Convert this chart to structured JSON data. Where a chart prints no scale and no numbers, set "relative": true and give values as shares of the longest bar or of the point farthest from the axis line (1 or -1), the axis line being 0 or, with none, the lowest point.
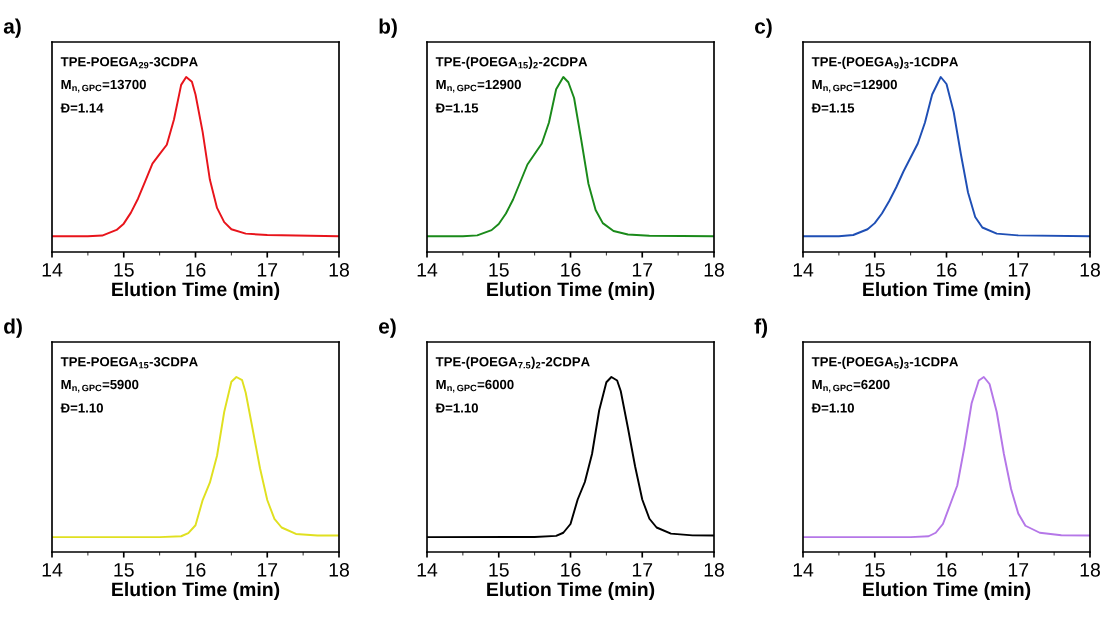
{
  "chart_data": [
    {
      "type": "line",
      "title": "a)",
      "xlabel": "Elution Time (min)",
      "xlim": [
        14,
        18
      ],
      "xticks": [
        14,
        15,
        16,
        17,
        18
      ],
      "relative": true,
      "tick_labels": "x",
      "annotations": [
        "TPE-POEGA$_{29}$-3CDPA",
        "M$_{n,GPC}$=13700",
        "Đ=1.14"
      ],
      "x": [
        14,
        14.5,
        14.7,
        14.9,
        15.0,
        15.1,
        15.2,
        15.3,
        15.4,
        15.5,
        15.6,
        15.7,
        15.8,
        15.87,
        15.95,
        16.0,
        16.1,
        16.2,
        16.3,
        16.4,
        16.5,
        16.7,
        17.0,
        18
      ],
      "series": [
        {
          "color": "#e8141b",
          "values": [
            0.09,
            0.09,
            0.094,
            0.126,
            0.162,
            0.225,
            0.306,
            0.405,
            0.505,
            0.559,
            0.613,
            0.757,
            0.955,
            1,
            0.973,
            0.9,
            0.685,
            0.414,
            0.252,
            0.171,
            0.13,
            0.105,
            0.097,
            0.09
          ]
        }
      ]
    },
    {
      "type": "line",
      "title": "b)",
      "xlabel": "Elution Time (min)",
      "xlim": [
        14,
        18
      ],
      "xticks": [
        14,
        15,
        16,
        17,
        18
      ],
      "relative": true,
      "tick_labels": "x",
      "annotations": [
        "TPE-(POEGA$_{15}$)$_{2}$-2CDPA",
        "M$_{n,GPC}$=12900",
        "Đ=1.15"
      ],
      "x": [
        14,
        14.5,
        14.7,
        14.9,
        15.0,
        15.1,
        15.2,
        15.3,
        15.4,
        15.5,
        15.6,
        15.7,
        15.8,
        15.9,
        15.97,
        16.05,
        16.15,
        16.25,
        16.35,
        16.45,
        16.6,
        16.8,
        17.1,
        18
      ],
      "series": [
        {
          "color": "#1a8a1a",
          "values": [
            0.09,
            0.09,
            0.095,
            0.125,
            0.16,
            0.22,
            0.3,
            0.4,
            0.5,
            0.56,
            0.62,
            0.74,
            0.93,
            1,
            0.97,
            0.88,
            0.64,
            0.39,
            0.24,
            0.165,
            0.12,
            0.1,
            0.093,
            0.09
          ]
        }
      ]
    },
    {
      "type": "line",
      "title": "c)",
      "xlabel": "Elution Time (min)",
      "xlim": [
        14,
        18
      ],
      "xticks": [
        14,
        15,
        16,
        17,
        18
      ],
      "relative": true,
      "tick_labels": "x",
      "annotations": [
        "TPE-(POEGA$_{9}$)$_{3}$-1CDPA",
        "M$_{n,GPC}$=12900",
        "Đ=1.15"
      ],
      "x": [
        14,
        14.5,
        14.7,
        14.9,
        15.0,
        15.1,
        15.2,
        15.3,
        15.4,
        15.5,
        15.6,
        15.7,
        15.8,
        15.92,
        16.0,
        16.1,
        16.2,
        16.3,
        16.4,
        16.5,
        16.7,
        17.0,
        18
      ],
      "series": [
        {
          "color": "#1f4fb5",
          "values": [
            0.09,
            0.09,
            0.097,
            0.13,
            0.165,
            0.22,
            0.29,
            0.37,
            0.46,
            0.54,
            0.62,
            0.74,
            0.9,
            1,
            0.96,
            0.8,
            0.56,
            0.34,
            0.2,
            0.14,
            0.105,
            0.095,
            0.09
          ]
        }
      ]
    },
    {
      "type": "line",
      "title": "d)",
      "xlabel": "Elution Time (min)",
      "xlim": [
        14,
        18
      ],
      "xticks": [
        14,
        15,
        16,
        17,
        18
      ],
      "relative": true,
      "tick_labels": "x",
      "annotations": [
        "TPE-POEGA$_{15}$-3CDPA",
        "M$_{n,GPC}$=5900",
        "Đ=1.10"
      ],
      "x": [
        14,
        15.5,
        15.8,
        15.9,
        16.0,
        16.1,
        16.2,
        16.3,
        16.4,
        16.5,
        16.57,
        16.65,
        16.7,
        16.8,
        16.9,
        17.0,
        17.1,
        17.2,
        17.4,
        17.7,
        18
      ],
      "series": [
        {
          "color": "#e0e020",
          "values": [
            0.085,
            0.085,
            0.09,
            0.108,
            0.153,
            0.297,
            0.396,
            0.55,
            0.8,
            0.973,
            1,
            0.982,
            0.91,
            0.694,
            0.477,
            0.297,
            0.189,
            0.14,
            0.103,
            0.094,
            0.094
          ]
        }
      ]
    },
    {
      "type": "line",
      "title": "e)",
      "xlabel": "Elution Time (min)",
      "xlim": [
        14,
        18
      ],
      "xticks": [
        14,
        15,
        16,
        17,
        18
      ],
      "relative": true,
      "tick_labels": "x",
      "annotations": [
        "TPE-(POEGA$_{7.5}$)$_{2}$-2CDPA",
        "M$_{n,GPC}$=6000",
        "Đ=1.10"
      ],
      "x": [
        14,
        15.5,
        15.8,
        15.9,
        16.0,
        16.1,
        16.2,
        16.3,
        16.4,
        16.5,
        16.57,
        16.65,
        16.7,
        16.8,
        16.9,
        17.0,
        17.1,
        17.2,
        17.4,
        17.7,
        18
      ],
      "series": [
        {
          "color": "#000000",
          "values": [
            0.085,
            0.086,
            0.092,
            0.11,
            0.16,
            0.3,
            0.4,
            0.56,
            0.81,
            0.97,
            1,
            0.98,
            0.92,
            0.71,
            0.49,
            0.3,
            0.19,
            0.14,
            0.105,
            0.095,
            0.094
          ]
        }
      ]
    },
    {
      "type": "line",
      "title": "f)",
      "xlabel": "Elution Time (min)",
      "xlim": [
        14,
        18
      ],
      "xticks": [
        14,
        15,
        16,
        17,
        18
      ],
      "relative": true,
      "tick_labels": "x",
      "annotations": [
        "TPE-(POEGA$_{5}$)$_{3}$-1CDPA",
        "M$_{n,GPC}$=6200",
        "Đ=1.10"
      ],
      "x": [
        14,
        15.5,
        15.75,
        15.85,
        15.95,
        16.05,
        16.15,
        16.25,
        16.35,
        16.45,
        16.52,
        16.6,
        16.7,
        16.8,
        16.9,
        17.0,
        17.1,
        17.3,
        17.6,
        18
      ],
      "series": [
        {
          "color": "#b577e8",
          "values": [
            0.085,
            0.085,
            0.09,
            0.11,
            0.16,
            0.27,
            0.38,
            0.6,
            0.85,
            0.98,
            1,
            0.96,
            0.8,
            0.56,
            0.36,
            0.22,
            0.15,
            0.11,
            0.096,
            0.094
          ]
        }
      ]
    }
  ]
}
